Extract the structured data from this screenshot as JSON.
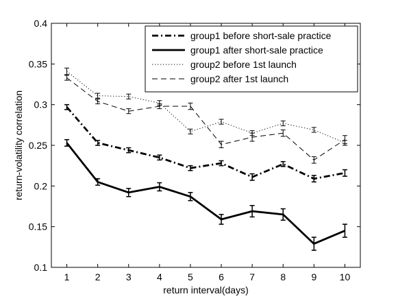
{
  "chart_data": {
    "type": "line",
    "title": "",
    "xlabel": "return interval(days)",
    "ylabel": "return-volatility correlation",
    "xlim": [
      0.5,
      10.5
    ],
    "ylim": [
      0.1,
      0.4
    ],
    "xticks": [
      1,
      2,
      3,
      4,
      5,
      6,
      7,
      8,
      9,
      10
    ],
    "yticks": [
      0.1,
      0.15,
      0.2,
      0.25,
      0.3,
      0.35,
      0.4
    ],
    "ytick_labels": [
      "0.1",
      "0.15",
      "0.2",
      "0.25",
      "0.3",
      "0.35",
      "0.4"
    ],
    "grid": false,
    "legend_position": "top-right",
    "x": [
      1,
      2,
      3,
      4,
      5,
      6,
      7,
      8,
      9,
      10
    ],
    "series": [
      {
        "name": "group1 before short-sale practice",
        "style": "dashdot",
        "width": "thick",
        "color": "#000000",
        "values": [
          0.297,
          0.253,
          0.244,
          0.235,
          0.222,
          0.228,
          0.211,
          0.227,
          0.209,
          0.216
        ],
        "errors": [
          0.003,
          0.003,
          0.003,
          0.003,
          0.003,
          0.003,
          0.004,
          0.003,
          0.004,
          0.004
        ]
      },
      {
        "name": "group1 after short-sale practice",
        "style": "solid",
        "width": "thick",
        "color": "#000000",
        "values": [
          0.253,
          0.205,
          0.192,
          0.199,
          0.187,
          0.159,
          0.169,
          0.165,
          0.129,
          0.145
        ],
        "errors": [
          0.004,
          0.004,
          0.005,
          0.005,
          0.005,
          0.006,
          0.007,
          0.007,
          0.008,
          0.008
        ]
      },
      {
        "name": "group2 before 1st launch",
        "style": "dotted",
        "width": "thin",
        "color": "#000000",
        "values": [
          0.341,
          0.311,
          0.31,
          0.302,
          0.267,
          0.279,
          0.265,
          0.277,
          0.269,
          0.253
        ],
        "errors": [
          0.004,
          0.003,
          0.003,
          0.003,
          0.003,
          0.003,
          0.003,
          0.003,
          0.003,
          0.003
        ]
      },
      {
        "name": "group2 after 1st launch",
        "style": "dashed",
        "width": "thin",
        "color": "#000000",
        "values": [
          0.333,
          0.304,
          0.292,
          0.298,
          0.298,
          0.251,
          0.26,
          0.265,
          0.232,
          0.257
        ],
        "errors": [
          0.003,
          0.003,
          0.003,
          0.003,
          0.004,
          0.004,
          0.005,
          0.004,
          0.004,
          0.005
        ]
      }
    ]
  }
}
